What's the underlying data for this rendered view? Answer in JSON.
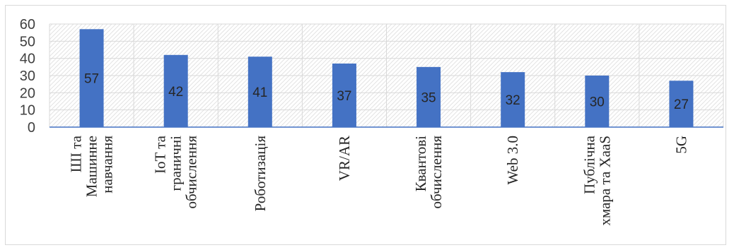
{
  "chart_data": {
    "type": "bar",
    "categories": [
      [
        "ШІ та",
        "Машинне",
        "навчання"
      ],
      [
        "IoT та",
        "граничні",
        "обчислення"
      ],
      [
        "Роботизація"
      ],
      [
        "VR/AR"
      ],
      [
        "Квантові",
        "обчислення"
      ],
      [
        "Web 3.0"
      ],
      [
        "Публічна",
        "хмара та XaaS"
      ],
      [
        "5G"
      ]
    ],
    "values": [
      57,
      42,
      41,
      37,
      35,
      32,
      30,
      27
    ],
    "data_labels": [
      "57",
      "42",
      "41",
      "37",
      "35",
      "32",
      "30",
      "27"
    ],
    "yticks": [
      "0",
      "10",
      "20",
      "30",
      "40",
      "50",
      "60"
    ],
    "ylim": [
      0,
      60
    ],
    "ytick_values": [
      0,
      10,
      20,
      30,
      40,
      50,
      60
    ],
    "grid": true,
    "legend": "none",
    "colors": {
      "bar": "#4472c4",
      "axis": "#4472c4",
      "grid": "#d9d9d9",
      "hatch": "#e3e3e3"
    }
  }
}
